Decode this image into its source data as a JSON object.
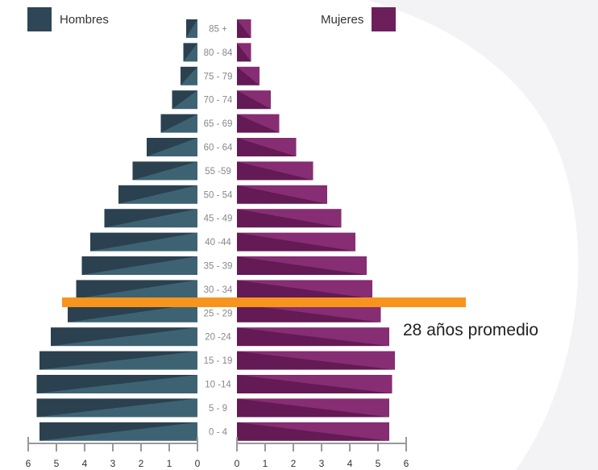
{
  "legend": {
    "men_label": "Hombres",
    "women_label": "Mujeres"
  },
  "annotation": {
    "average_text": "28 años promedio",
    "average_age_group_boundary": "25 - 29 / 30 - 34"
  },
  "colors": {
    "men": "#2e4655",
    "men_light": "#3e6474",
    "women": "#6d1f5b",
    "women_light": "#8a2f76",
    "average_line": "#f7941d",
    "axis": "#999999",
    "background_shape": "#f3f3f5"
  },
  "chart_data": {
    "type": "bar",
    "orientation": "horizontal",
    "subtype": "population-pyramid",
    "title": "",
    "categories": [
      "85 +",
      "80 - 84",
      "75 - 79",
      "70 - 74",
      "65 - 69",
      "60 - 64",
      "55 -59",
      "50 - 54",
      "45 - 49",
      "40 -44",
      "35 - 39",
      "30 - 34",
      "25 - 29",
      "20 -24",
      "15 - 19",
      "10 -14",
      "5 - 9",
      "0 - 4"
    ],
    "series": [
      {
        "name": "Hombres",
        "side": "left",
        "values": [
          0.4,
          0.5,
          0.6,
          0.9,
          1.3,
          1.8,
          2.3,
          2.8,
          3.3,
          3.8,
          4.1,
          4.3,
          4.6,
          5.2,
          5.6,
          5.7,
          5.7,
          5.6
        ]
      },
      {
        "name": "Mujeres",
        "side": "right",
        "values": [
          0.5,
          0.5,
          0.8,
          1.2,
          1.5,
          2.1,
          2.7,
          3.2,
          3.7,
          4.2,
          4.6,
          4.8,
          5.1,
          5.4,
          5.6,
          5.5,
          5.4,
          5.4
        ]
      }
    ],
    "xlim": [
      0,
      6
    ],
    "ticks_left": [
      "6",
      "5",
      "4",
      "3",
      "2",
      "1",
      "0"
    ],
    "ticks_right": [
      "0",
      "1",
      "2",
      "3",
      "4",
      "5",
      "6"
    ],
    "grid": false,
    "legend_placement": "top"
  }
}
